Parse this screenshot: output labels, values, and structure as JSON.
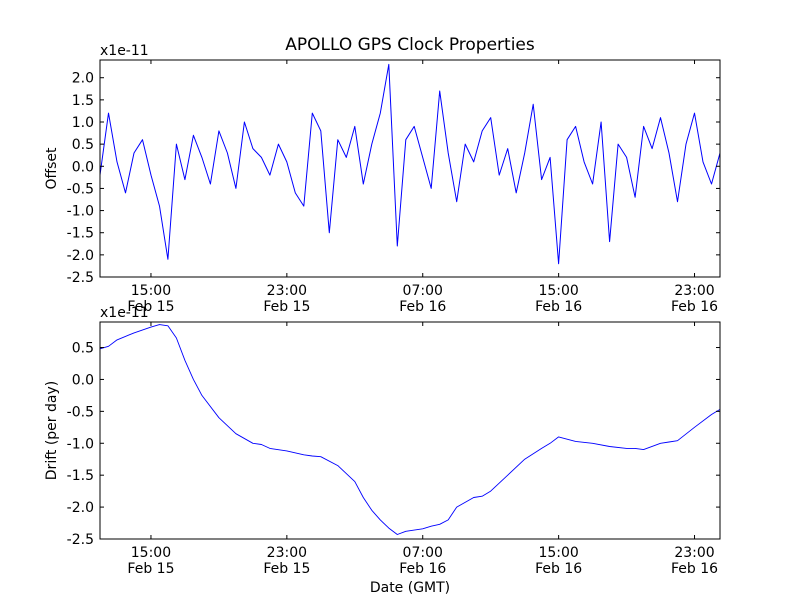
{
  "chart_data": [
    {
      "type": "line",
      "title": "APOLLO GPS Clock Properties",
      "xlabel": "",
      "ylabel": "Offset",
      "scale_label": "x1e-11",
      "ylim": [
        -2.5,
        2.4
      ],
      "xlim_hours": [
        12.0,
        48.5
      ],
      "yticks": [
        -2.5,
        -2.0,
        -1.5,
        -1.0,
        -0.5,
        0.0,
        0.5,
        1.0,
        1.5,
        2.0
      ],
      "ytick_labels": [
        "-2.5",
        "-2.0",
        "-1.5",
        "-1.0",
        "-0.5",
        "0.0",
        "0.5",
        "1.0",
        "1.5",
        "2.0"
      ],
      "xticks": [
        {
          "hour": 15,
          "time": "15:00",
          "date": "Feb 15"
        },
        {
          "hour": 23,
          "time": "23:00",
          "date": "Feb 15"
        },
        {
          "hour": 31,
          "time": "07:00",
          "date": "Feb 16"
        },
        {
          "hour": 39,
          "time": "15:00",
          "date": "Feb 16"
        },
        {
          "hour": 47,
          "time": "23:00",
          "date": "Feb 16"
        }
      ],
      "series": [
        {
          "name": "offset",
          "color": "#0000ff",
          "x": [
            12.0,
            12.5,
            13.0,
            13.5,
            14.0,
            14.5,
            15.0,
            15.5,
            16.0,
            16.5,
            17.0,
            17.5,
            18.0,
            18.5,
            19.0,
            19.5,
            20.0,
            20.5,
            21.0,
            21.5,
            22.0,
            22.5,
            23.0,
            23.5,
            24.0,
            24.5,
            25.0,
            25.5,
            26.0,
            26.5,
            27.0,
            27.5,
            28.0,
            28.5,
            29.0,
            29.5,
            30.0,
            30.5,
            31.0,
            31.5,
            32.0,
            32.5,
            33.0,
            33.5,
            34.0,
            34.5,
            35.0,
            35.5,
            36.0,
            36.5,
            37.0,
            37.5,
            38.0,
            38.5,
            39.0,
            39.5,
            40.0,
            40.5,
            41.0,
            41.5,
            42.0,
            42.5,
            43.0,
            43.5,
            44.0,
            44.5,
            45.0,
            45.5,
            46.0,
            46.5,
            47.0,
            47.5,
            48.0,
            48.5
          ],
          "y": [
            -0.2,
            1.2,
            0.1,
            -0.6,
            0.3,
            0.6,
            -0.2,
            -0.9,
            -2.1,
            0.5,
            -0.3,
            0.7,
            0.2,
            -0.4,
            0.8,
            0.3,
            -0.5,
            1.0,
            0.4,
            0.2,
            -0.2,
            0.5,
            0.1,
            -0.6,
            -0.9,
            1.2,
            0.8,
            -1.5,
            0.6,
            0.2,
            0.9,
            -0.4,
            0.5,
            1.2,
            2.3,
            -1.8,
            0.6,
            0.9,
            0.2,
            -0.5,
            1.7,
            0.3,
            -0.8,
            0.5,
            0.1,
            0.8,
            1.1,
            -0.2,
            0.4,
            -0.6,
            0.3,
            1.4,
            -0.3,
            0.2,
            -2.2,
            0.6,
            0.9,
            0.1,
            -0.4,
            1.0,
            -1.7,
            0.5,
            0.2,
            -0.7,
            0.9,
            0.4,
            1.1,
            0.3,
            -0.8,
            0.5,
            1.2,
            0.1,
            -0.4,
            0.3
          ]
        }
      ]
    },
    {
      "type": "line",
      "title": "",
      "xlabel": "Date (GMT)",
      "ylabel": "Drift (per day)",
      "scale_label": "x1e-11",
      "ylim": [
        -2.5,
        0.9
      ],
      "xlim_hours": [
        12.0,
        48.5
      ],
      "yticks": [
        -2.5,
        -2.0,
        -1.5,
        -1.0,
        -0.5,
        0.0,
        0.5
      ],
      "ytick_labels": [
        "-2.5",
        "-2.0",
        "-1.5",
        "-1.0",
        "-0.5",
        "0.0",
        "0.5"
      ],
      "xticks": [
        {
          "hour": 15,
          "time": "15:00",
          "date": "Feb 15"
        },
        {
          "hour": 23,
          "time": "23:00",
          "date": "Feb 15"
        },
        {
          "hour": 31,
          "time": "07:00",
          "date": "Feb 16"
        },
        {
          "hour": 39,
          "time": "15:00",
          "date": "Feb 16"
        },
        {
          "hour": 47,
          "time": "23:00",
          "date": "Feb 16"
        }
      ],
      "series": [
        {
          "name": "drift",
          "color": "#0000ff",
          "x": [
            12.0,
            12.5,
            13.0,
            14.0,
            15.0,
            15.5,
            16.0,
            16.5,
            17.0,
            17.5,
            18.0,
            19.0,
            20.0,
            21.0,
            21.5,
            22.0,
            23.0,
            24.0,
            24.5,
            25.0,
            26.0,
            27.0,
            27.5,
            28.0,
            28.5,
            29.0,
            29.5,
            30.0,
            31.0,
            31.5,
            32.0,
            32.5,
            33.0,
            34.0,
            34.5,
            35.0,
            36.0,
            37.0,
            38.0,
            38.5,
            39.0,
            40.0,
            41.0,
            42.0,
            43.0,
            43.5,
            44.0,
            45.0,
            45.5,
            46.0,
            47.0,
            48.0,
            48.5
          ],
          "y": [
            0.48,
            0.52,
            0.62,
            0.73,
            0.82,
            0.86,
            0.84,
            0.65,
            0.3,
            0.0,
            -0.25,
            -0.6,
            -0.85,
            -1.0,
            -1.02,
            -1.08,
            -1.12,
            -1.18,
            -1.2,
            -1.21,
            -1.35,
            -1.6,
            -1.85,
            -2.05,
            -2.2,
            -2.33,
            -2.43,
            -2.38,
            -2.34,
            -2.3,
            -2.27,
            -2.2,
            -2.0,
            -1.85,
            -1.83,
            -1.75,
            -1.5,
            -1.25,
            -1.08,
            -1.0,
            -0.9,
            -0.97,
            -1.0,
            -1.05,
            -1.08,
            -1.08,
            -1.1,
            -1.0,
            -0.98,
            -0.96,
            -0.75,
            -0.55,
            -0.47
          ]
        }
      ]
    }
  ]
}
